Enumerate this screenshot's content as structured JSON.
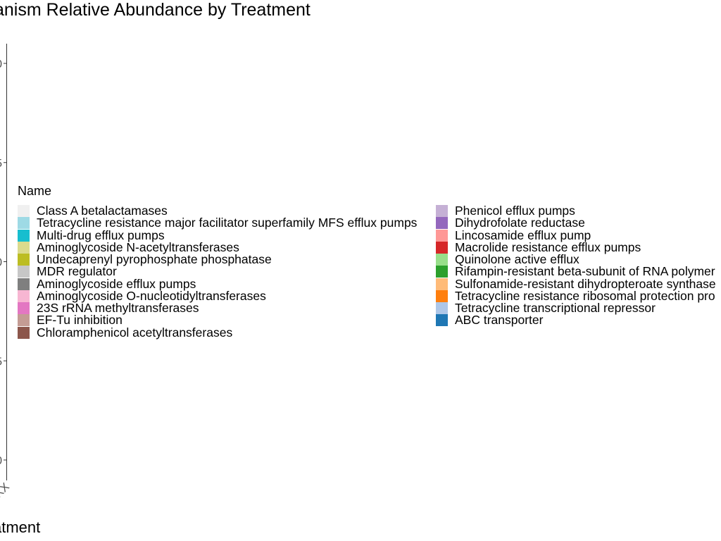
{
  "chart_data": {
    "type": "bar",
    "title": "anism Relative Abundance by Treatment",
    "xlabel": "atment",
    "ylabel": "",
    "categories": [
      "XX"
    ],
    "y_tick_labels": [
      "0",
      "5",
      "0",
      "5",
      "0"
    ],
    "legend_title": "Name",
    "series": [
      {
        "name": "Class A betalactamases",
        "color": "#f0f0f0"
      },
      {
        "name": "Tetracycline resistance major facilitator superfamily MFS efflux pumps",
        "color": "#9edae5"
      },
      {
        "name": "Multi-drug efflux pumps",
        "color": "#17becf"
      },
      {
        "name": "Aminoglycoside N-acetyltransferases",
        "color": "#dbdb8d"
      },
      {
        "name": "Undecaprenyl pyrophosphate phosphatase",
        "color": "#bcbd22"
      },
      {
        "name": "MDR regulator",
        "color": "#c7c7c7"
      },
      {
        "name": "Aminoglycoside efflux pumps",
        "color": "#7f7f7f"
      },
      {
        "name": "Aminoglycoside O-nucleotidyltransferases",
        "color": "#f7b6d2"
      },
      {
        "name": "23S rRNA methyltransferases",
        "color": "#e377c2"
      },
      {
        "name": "EF-Tu inhibition",
        "color": "#c49c94"
      },
      {
        "name": "Chloramphenicol acetyltransferases",
        "color": "#8c564b"
      },
      {
        "name": "Phenicol efflux pumps",
        "color": "#c5b0d5"
      },
      {
        "name": "Dihydrofolate reductase",
        "color": "#9467bd"
      },
      {
        "name": "Lincosamide efflux pump",
        "color": "#ff9896"
      },
      {
        "name": "Macrolide resistance efflux pumps",
        "color": "#d62728"
      },
      {
        "name": "Quinolone active efflux",
        "color": "#98df8a"
      },
      {
        "name": "Rifampin-resistant beta-subunit of RNA polymer",
        "color": "#2ca02c"
      },
      {
        "name": "Sulfonamide-resistant dihydropteroate synthase",
        "color": "#ffbb78"
      },
      {
        "name": "Tetracycline resistance ribosomal protection pro",
        "color": "#ff7f0e"
      },
      {
        "name": "Tetracycline transcriptional repressor",
        "color": "#aec7e8"
      },
      {
        "name": "ABC transporter",
        "color": "#1f77b4"
      }
    ],
    "legend_placement": "center",
    "grid": false
  }
}
